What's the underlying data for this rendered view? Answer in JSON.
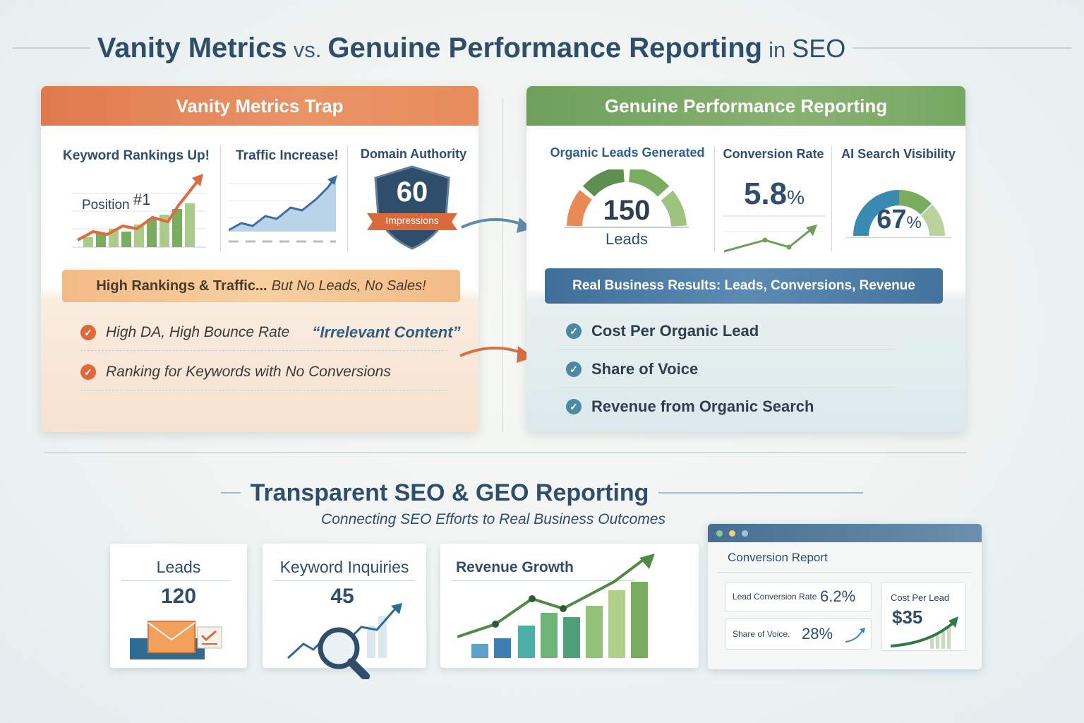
{
  "title": {
    "part1": "Vanity Metrics",
    "vs": "vs.",
    "part2": "Genuine Performance Reporting",
    "in": "in",
    "part3": "SEO"
  },
  "vanity": {
    "header": "Vanity Metrics Trap",
    "metrics": [
      {
        "label": "Keyword Rankings Up!",
        "annotation": "Position",
        "annotation_value": "#1"
      },
      {
        "label": "Traffic Increase!"
      },
      {
        "label": "Domain Authority",
        "value": "60",
        "ribbon": "Impressions"
      }
    ],
    "banner": {
      "main": "High Rankings & Traffic...",
      "tail": "But No Leads, No Sales!"
    },
    "items": [
      {
        "text": "High DA, High Bounce Rate",
        "quote": "“Irrelevant Content”"
      },
      {
        "text": "Ranking for Keywords with No Conversions"
      }
    ],
    "colors": {
      "accent": "#e07a4e",
      "chart_green": "#7aac5f",
      "chart_blue": "#5f8fb8"
    }
  },
  "genuine": {
    "header": "Genuine Performance Reporting",
    "metrics": [
      {
        "label": "Organic Leads Generated",
        "value": "150",
        "unit": "Leads"
      },
      {
        "label": "Conversion Rate",
        "value": "5.8",
        "unit": "%"
      },
      {
        "label": "AI Search Visibility",
        "value": "67",
        "unit": "%",
        "gauge_fraction": 0.67
      }
    ],
    "banner": "Real Business Results: Leads, Conversions, Revenue",
    "items": [
      {
        "text": "Cost Per Organic Lead"
      },
      {
        "text": "Share of Voice"
      },
      {
        "text": "Revenue from Organic Search"
      }
    ],
    "colors": {
      "accent": "#6ea05b",
      "banner": "#4a7aa3"
    }
  },
  "section2": {
    "title": "Transparent SEO & GEO Reporting",
    "subtitle": "Connecting SEO Efforts to Real Business Outcomes",
    "cards": [
      {
        "title": "Leads",
        "value": "120",
        "icon": "envelope-icon"
      },
      {
        "title": "Keyword Inquiries",
        "value": "45",
        "icon": "magnifier-icon"
      },
      {
        "title": "Revenue Growth",
        "icon": "bar-chart-icon"
      }
    ],
    "report": {
      "title": "Conversion Report",
      "lead_conversion_label": "Lead Conversion Rate",
      "lead_conversion_value": "6.2%",
      "share_label": "Share of Voice.",
      "share_value": "28%",
      "cost_label": "Cost Per Lead",
      "cost_value": "$35"
    }
  }
}
